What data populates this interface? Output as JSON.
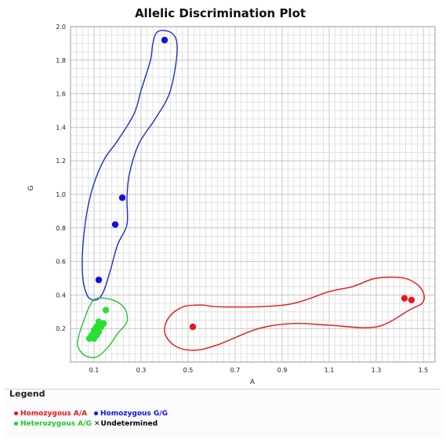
{
  "chart_data": {
    "type": "scatter",
    "title": "Allelic Discrimination Plot",
    "xlabel": "A",
    "ylabel": "G",
    "xlim": [
      0.0,
      1.55
    ],
    "ylim": [
      0.0,
      2.0
    ],
    "x_ticks": [
      "0.1",
      "0.3",
      "0.5",
      "0.7",
      "0.9",
      "1.1",
      "1.3",
      "1.5"
    ],
    "y_ticks": [
      "0.2",
      "0.4",
      "0.6",
      "0.8",
      "1.0",
      "1.2",
      "1.4",
      "1.6",
      "1.8",
      "2.0"
    ],
    "grid": true,
    "series": [
      {
        "name": "Homozygous A/A",
        "color": "#e8151b",
        "points": [
          [
            0.52,
            0.21
          ],
          [
            1.42,
            0.38
          ],
          [
            1.45,
            0.37
          ]
        ]
      },
      {
        "name": "Homozygous G/G",
        "color": "#1010e6",
        "points": [
          [
            0.4,
            1.92
          ],
          [
            0.22,
            0.98
          ],
          [
            0.19,
            0.82
          ],
          [
            0.12,
            0.49
          ]
        ]
      },
      {
        "name": "Heterozygous A/G",
        "color": "#27e033",
        "points": [
          [
            0.15,
            0.31
          ],
          [
            0.12,
            0.24
          ],
          [
            0.14,
            0.23
          ],
          [
            0.11,
            0.21
          ],
          [
            0.13,
            0.21
          ],
          [
            0.1,
            0.19
          ],
          [
            0.12,
            0.18
          ],
          [
            0.09,
            0.16
          ],
          [
            0.11,
            0.16
          ],
          [
            0.08,
            0.14
          ],
          [
            0.1,
            0.14
          ]
        ]
      },
      {
        "name": "Undetermined",
        "color": "#111111",
        "points": []
      }
    ],
    "clusters": [
      {
        "name": "Homozygous A/A",
        "color": "#e8151b",
        "outline": [
          [
            0.48,
            0.33
          ],
          [
            0.56,
            0.34
          ],
          [
            0.62,
            0.33
          ],
          [
            0.8,
            0.33
          ],
          [
            0.95,
            0.35
          ],
          [
            1.1,
            0.42
          ],
          [
            1.2,
            0.45
          ],
          [
            1.3,
            0.5
          ],
          [
            1.42,
            0.5
          ],
          [
            1.49,
            0.44
          ],
          [
            1.5,
            0.36
          ],
          [
            1.44,
            0.31
          ],
          [
            1.3,
            0.21
          ],
          [
            1.1,
            0.22
          ],
          [
            0.95,
            0.23
          ],
          [
            0.8,
            0.2
          ],
          [
            0.62,
            0.1
          ],
          [
            0.52,
            0.07
          ],
          [
            0.44,
            0.1
          ],
          [
            0.4,
            0.18
          ],
          [
            0.42,
            0.27
          ]
        ]
      },
      {
        "name": "Homozygous G/G",
        "color": "#1a2fd0",
        "outline": [
          [
            0.37,
            1.97
          ],
          [
            0.42,
            1.97
          ],
          [
            0.45,
            1.92
          ],
          [
            0.45,
            1.8
          ],
          [
            0.42,
            1.6
          ],
          [
            0.36,
            1.45
          ],
          [
            0.29,
            1.3
          ],
          [
            0.25,
            1.12
          ],
          [
            0.24,
            0.98
          ],
          [
            0.24,
            0.82
          ],
          [
            0.2,
            0.7
          ],
          [
            0.17,
            0.55
          ],
          [
            0.14,
            0.42
          ],
          [
            0.11,
            0.37
          ],
          [
            0.07,
            0.4
          ],
          [
            0.05,
            0.55
          ],
          [
            0.06,
            0.8
          ],
          [
            0.09,
            1.02
          ],
          [
            0.14,
            1.2
          ],
          [
            0.2,
            1.32
          ],
          [
            0.27,
            1.48
          ],
          [
            0.3,
            1.62
          ],
          [
            0.34,
            1.8
          ],
          [
            0.35,
            1.9
          ]
        ]
      },
      {
        "name": "Heterozygous A/G",
        "color": "#27c22f",
        "outline": [
          [
            0.11,
            0.38
          ],
          [
            0.18,
            0.37
          ],
          [
            0.23,
            0.32
          ],
          [
            0.24,
            0.24
          ],
          [
            0.2,
            0.17
          ],
          [
            0.16,
            0.09
          ],
          [
            0.11,
            0.03
          ],
          [
            0.06,
            0.04
          ],
          [
            0.03,
            0.1
          ],
          [
            0.04,
            0.18
          ],
          [
            0.06,
            0.26
          ],
          [
            0.08,
            0.33
          ]
        ]
      }
    ]
  },
  "legend": {
    "title": "Legend",
    "items": [
      {
        "label": "Homozygous A/A",
        "color": "#e8151b",
        "marker": "dot"
      },
      {
        "label": "Homozygous G/G",
        "color": "#1010e6",
        "marker": "dot"
      },
      {
        "label": "Heterozygous A/G",
        "color": "#27c22f",
        "marker": "dot"
      },
      {
        "label": "Undetermined",
        "color": "#111111",
        "marker": "x"
      }
    ]
  }
}
